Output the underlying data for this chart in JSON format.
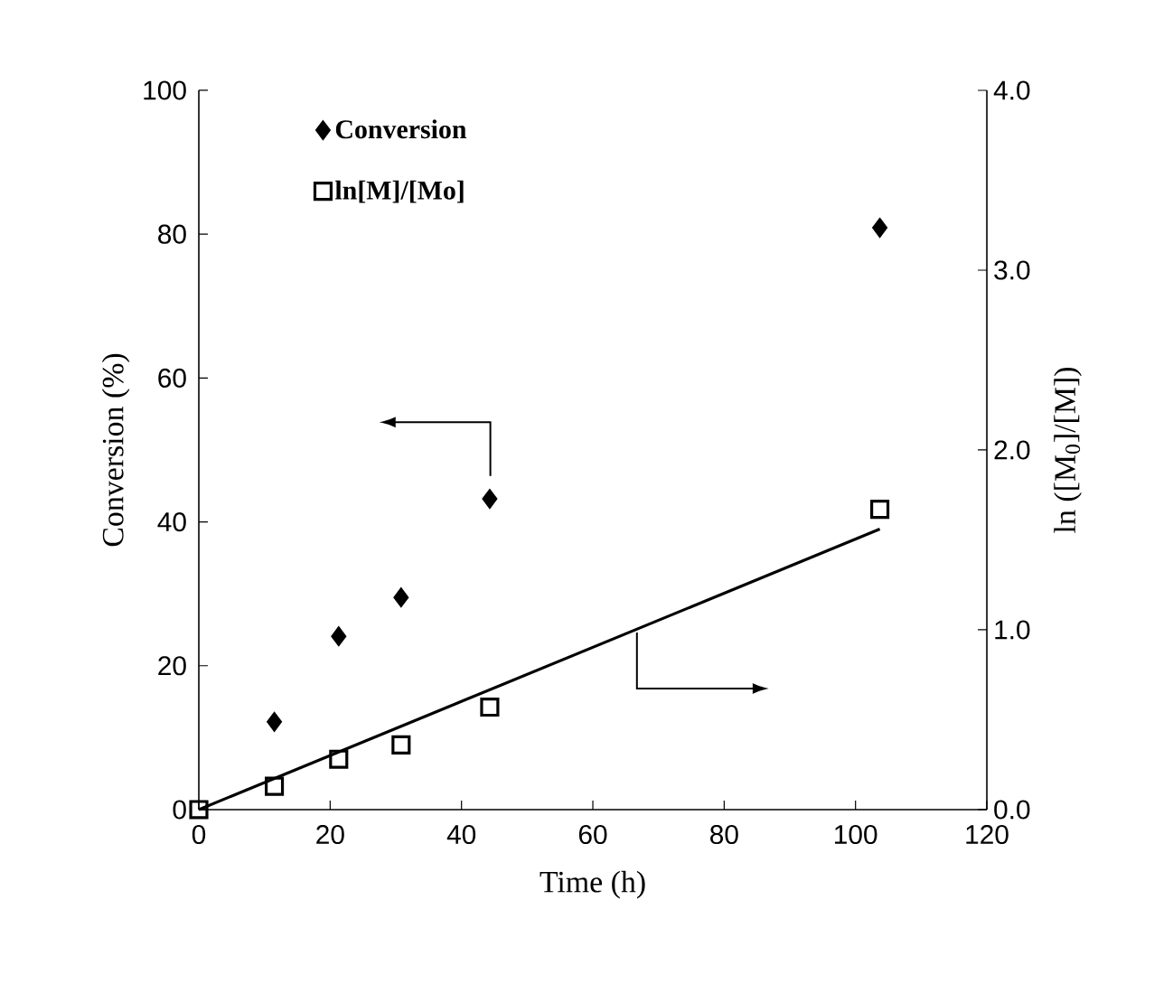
{
  "chart_data": {
    "type": "scatter",
    "xlabel": "Time (h)",
    "ylabel": "Conversion (%)",
    "y2label": "ln ([M$_{0}$]/[M])",
    "xlim": [
      0,
      120
    ],
    "xticks": [
      0,
      20,
      40,
      60,
      80,
      100,
      120
    ],
    "ylim": [
      0,
      100
    ],
    "yticks": [
      0,
      20,
      40,
      60,
      80,
      100
    ],
    "y2lim": [
      0,
      4
    ],
    "y2ticks": [
      {
        "value": 0,
        "label": "0.0"
      },
      {
        "value": 1,
        "label": "1.0"
      },
      {
        "value": 2,
        "label": "2.0"
      },
      {
        "value": 3,
        "label": "3.0"
      },
      {
        "value": 4,
        "label": "4.0"
      }
    ],
    "legend": "top left",
    "series": [
      {
        "name": "Conversion",
        "marker": "diamond",
        "color": "#000000",
        "x": [
          11.5,
          21.3,
          30.8,
          44.3,
          103.7
        ],
        "values": [
          12.2,
          24.1,
          29.5,
          43.2,
          80.9
        ]
      },
      {
        "name": "ln[M]/[Mo]",
        "axis": "y2",
        "marker": "square",
        "color": "#000000",
        "x": [
          0,
          11.5,
          21.3,
          30.8,
          44.3,
          103.7
        ],
        "values": [
          0,
          0.13,
          0.28,
          0.36,
          0.57,
          1.67
        ]
      },
      {
        "type": "line",
        "axis": "y2",
        "color": "#000000",
        "x": [
          0,
          103.7
        ],
        "values": [
          0,
          1.56
        ]
      }
    ]
  }
}
